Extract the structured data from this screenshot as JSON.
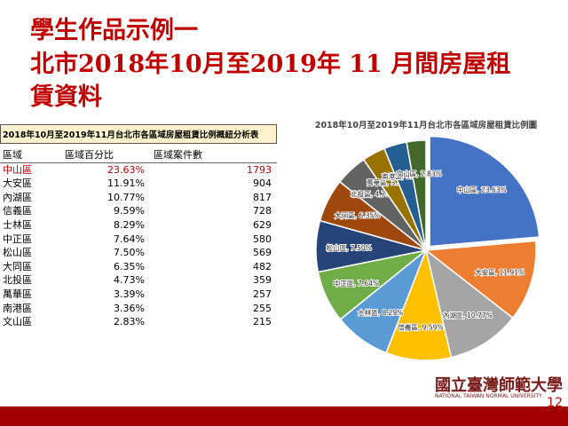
{
  "slide": {
    "title_lines": [
      "學生作品示例一",
      "北市2018年10月至2019年 11 月間房屋租",
      "賃資料"
    ],
    "page_number": "12",
    "logo_text": "國立臺灣師範大學",
    "logo_subtext": "NATIONAL TAIWAN NORMAL UNIVERSITY"
  },
  "table": {
    "title": "2018年10月至2019年11月台北市各區域房屋租賃比例概紐分析表",
    "headers": [
      "區域",
      "區域百分比",
      "區域案件數"
    ],
    "rows": [
      [
        "中山區",
        "23.63%",
        "1793"
      ],
      [
        "大安區",
        "11.91%",
        "904"
      ],
      [
        "內湖區",
        "10.77%",
        "817"
      ],
      [
        "信義區",
        "9.59%",
        "728"
      ],
      [
        "士林區",
        "8.29%",
        "629"
      ],
      [
        "中正區",
        "7.64%",
        "580"
      ],
      [
        "松山區",
        "7.50%",
        "569"
      ],
      [
        "大同區",
        "6.35%",
        "482"
      ],
      [
        "北投區",
        "4.73%",
        "359"
      ],
      [
        "萬華區",
        "3.39%",
        "257"
      ],
      [
        "南港區",
        "3.36%",
        "255"
      ],
      [
        "文山區",
        "2.83%",
        "215"
      ]
    ]
  },
  "chart_data": {
    "type": "pie",
    "title": "2018年10月至2019年11月台北市各區域房屋租賃比例圖",
    "categories": [
      "中山區",
      "大安區",
      "內湖區",
      "信義區",
      "士林區",
      "中正區",
      "松山區",
      "大同區",
      "北投區",
      "萬華區",
      "南港區",
      "文山區"
    ],
    "values": [
      23.63,
      11.91,
      10.77,
      9.59,
      8.29,
      7.64,
      7.5,
      6.35,
      4.73,
      3.39,
      3.36,
      2.83
    ],
    "value_labels": [
      "中山區, 23.63%",
      "大安區, 11.91%",
      "內湖區, 10.77%",
      "信義區, 9.59%",
      "士林區, 8.29%",
      "中正區, 7.64%",
      "松山區, 7.50%",
      "大同區, 6.35%",
      "北投區, 4.73%",
      "萬華區, 3.39%",
      "南港區, 3.36%",
      "文山區, 2.83%"
    ],
    "colors": [
      "#4472c4",
      "#ed7d31",
      "#a5a5a5",
      "#ffc000",
      "#5b9bd5",
      "#70ad47",
      "#264478",
      "#9e480e",
      "#636363",
      "#997300",
      "#255e91",
      "#43682b"
    ]
  }
}
